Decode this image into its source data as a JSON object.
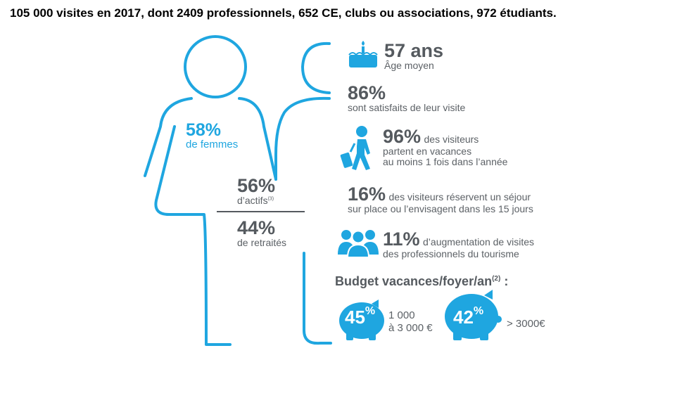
{
  "headline": "105 000 visites en 2017, dont 2409 professionnels, 652 CE, clubs ou associations, 972 étudiants.",
  "women": {
    "value": "58%",
    "label": "de femmes"
  },
  "actifs": {
    "value": "56%",
    "label": "d’actifs",
    "note": "(3)"
  },
  "retraites": {
    "value": "44%",
    "label": "de retraités"
  },
  "age": {
    "value": "57 ans",
    "label": "Âge moyen",
    "icon": "cake-icon"
  },
  "satisfaction": {
    "value": "86%",
    "label": "sont satisfaits de leur visite"
  },
  "vacances": {
    "value": "96%",
    "line1": "des visiteurs",
    "line2": "partent en vacances",
    "line3": "au moins 1 fois dans l’année",
    "icon": "traveler-icon"
  },
  "sejour": {
    "value": "16%",
    "line1": "des visiteurs réservent un séjour",
    "line2": "sur place ou l’envisagent dans les 15 jours"
  },
  "pros": {
    "value": "11%",
    "line1": "d’augmentation de visites",
    "line2": "des professionnels du tourisme",
    "icon": "group-icon"
  },
  "budget": {
    "title": "Budget vacances/foyer/an",
    "note": "(2)",
    "colon": " :",
    "items": [
      {
        "num": "45",
        "pct": "%",
        "range1": "1 000",
        "range2": "à 3 000 €",
        "icon": "piggy-bank-icon"
      },
      {
        "num": "42",
        "pct": "%",
        "range1": "> 3000€",
        "icon": "piggy-bank-icon"
      }
    ]
  },
  "colors": {
    "accent": "#1fa6e0",
    "text": "#555a5f"
  }
}
